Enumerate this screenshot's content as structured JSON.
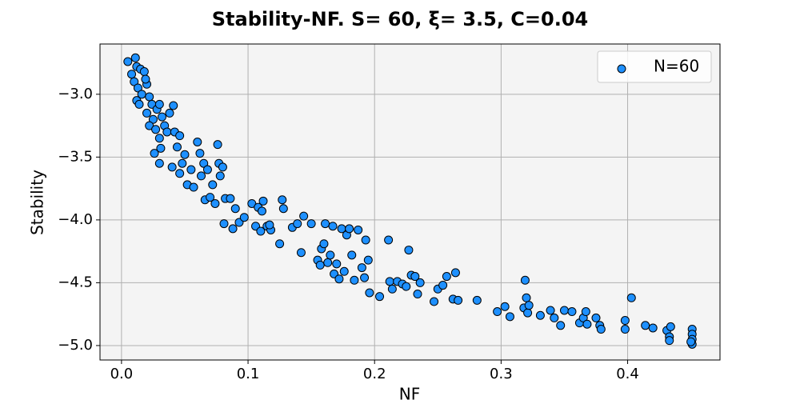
{
  "chart_data": {
    "type": "scatter",
    "title": "Stability-NF. S= 60, ξ= 3.5, C=0.04",
    "xlabel": "NF",
    "ylabel": "Stability",
    "xlim": [
      -0.017,
      0.473
    ],
    "ylim": [
      -5.115,
      -2.6
    ],
    "xticks": [
      {
        "value": 0,
        "label": "0.0"
      },
      0.1,
      0.2,
      0.3,
      0.4
    ],
    "yticks": [
      {
        "value": -3.0,
        "label": "−3.0"
      },
      {
        "value": -3.5,
        "label": "−3.5"
      },
      {
        "value": -4.0,
        "label": "−4.0"
      },
      {
        "value": -4.5,
        "label": "−4.5"
      },
      {
        "value": -5.0,
        "label": "−5.0"
      }
    ],
    "grid": true,
    "legend": "upper right",
    "series": [
      {
        "name": "N=60",
        "color": "#1e90ff",
        "x": [
          0.005,
          0.011,
          0.008,
          0.012,
          0.015,
          0.018,
          0.02,
          0.01,
          0.013,
          0.016,
          0.012,
          0.019,
          0.022,
          0.024,
          0.014,
          0.02,
          0.025,
          0.022,
          0.028,
          0.03,
          0.032,
          0.027,
          0.03,
          0.034,
          0.036,
          0.026,
          0.031,
          0.03,
          0.038,
          0.041,
          0.042,
          0.044,
          0.046,
          0.04,
          0.048,
          0.05,
          0.046,
          0.052,
          0.055,
          0.057,
          0.06,
          0.062,
          0.063,
          0.065,
          0.066,
          0.068,
          0.07,
          0.072,
          0.074,
          0.076,
          0.077,
          0.078,
          0.08,
          0.082,
          0.086,
          0.081,
          0.088,
          0.09,
          0.093,
          0.097,
          0.103,
          0.106,
          0.108,
          0.11,
          0.111,
          0.112,
          0.115,
          0.118,
          0.117,
          0.125,
          0.127,
          0.128,
          0.135,
          0.139,
          0.142,
          0.144,
          0.15,
          0.155,
          0.157,
          0.158,
          0.16,
          0.161,
          0.163,
          0.165,
          0.167,
          0.168,
          0.17,
          0.172,
          0.174,
          0.176,
          0.178,
          0.18,
          0.182,
          0.184,
          0.187,
          0.19,
          0.192,
          0.193,
          0.195,
          0.196,
          0.204,
          0.211,
          0.212,
          0.214,
          0.218,
          0.222,
          0.225,
          0.227,
          0.229,
          0.232,
          0.234,
          0.236,
          0.247,
          0.25,
          0.254,
          0.257,
          0.262,
          0.264,
          0.266,
          0.281,
          0.297,
          0.303,
          0.307,
          0.318,
          0.319,
          0.32,
          0.321,
          0.322,
          0.331,
          0.339,
          0.342,
          0.347,
          0.35,
          0.356,
          0.362,
          0.365,
          0.367,
          0.368,
          0.375,
          0.378,
          0.379,
          0.398,
          0.398,
          0.403,
          0.414,
          0.42,
          0.431,
          0.433,
          0.434,
          0.433,
          0.451,
          0.451,
          0.451,
          0.451,
          0.45
        ],
        "values": [
          -2.74,
          -2.71,
          -2.84,
          -2.78,
          -2.8,
          -2.82,
          -2.92,
          -2.9,
          -2.95,
          -3.0,
          -3.05,
          -2.88,
          -3.02,
          -3.08,
          -3.08,
          -3.15,
          -3.2,
          -3.25,
          -3.12,
          -3.08,
          -3.18,
          -3.28,
          -3.35,
          -3.25,
          -3.3,
          -3.47,
          -3.43,
          -3.55,
          -3.15,
          -3.09,
          -3.3,
          -3.42,
          -3.33,
          -3.58,
          -3.55,
          -3.48,
          -3.63,
          -3.72,
          -3.6,
          -3.74,
          -3.38,
          -3.47,
          -3.65,
          -3.55,
          -3.84,
          -3.6,
          -3.82,
          -3.72,
          -3.87,
          -3.4,
          -3.55,
          -3.65,
          -3.58,
          -3.83,
          -3.83,
          -4.03,
          -4.07,
          -3.91,
          -4.02,
          -3.98,
          -3.87,
          -4.05,
          -3.9,
          -4.09,
          -3.93,
          -3.85,
          -4.05,
          -4.08,
          -4.04,
          -4.19,
          -3.84,
          -3.91,
          -4.06,
          -4.03,
          -4.26,
          -3.97,
          -4.03,
          -4.32,
          -4.36,
          -4.23,
          -4.19,
          -4.03,
          -4.34,
          -4.28,
          -4.05,
          -4.43,
          -4.35,
          -4.47,
          -4.07,
          -4.41,
          -4.12,
          -4.07,
          -4.28,
          -4.48,
          -4.08,
          -4.38,
          -4.46,
          -4.16,
          -4.32,
          -4.58,
          -4.61,
          -4.16,
          -4.49,
          -4.55,
          -4.49,
          -4.51,
          -4.53,
          -4.24,
          -4.44,
          -4.45,
          -4.59,
          -4.5,
          -4.65,
          -4.55,
          -4.52,
          -4.45,
          -4.63,
          -4.42,
          -4.64,
          -4.64,
          -4.73,
          -4.69,
          -4.77,
          -4.7,
          -4.48,
          -4.62,
          -4.74,
          -4.68,
          -4.76,
          -4.72,
          -4.78,
          -4.84,
          -4.72,
          -4.73,
          -4.82,
          -4.78,
          -4.73,
          -4.83,
          -4.78,
          -4.84,
          -4.87,
          -4.8,
          -4.87,
          -4.62,
          -4.84,
          -4.86,
          -4.88,
          -4.93,
          -4.85,
          -4.96,
          -4.87,
          -4.91,
          -4.95,
          -4.99,
          -4.97
        ]
      }
    ]
  }
}
